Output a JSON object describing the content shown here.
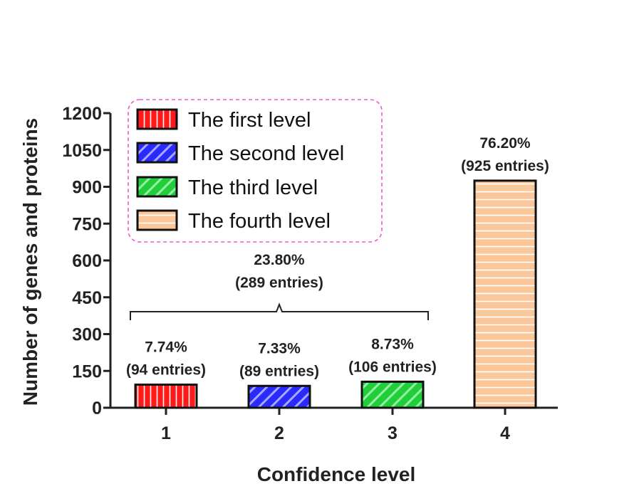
{
  "chart_data": {
    "type": "bar",
    "categories": [
      "1",
      "2",
      "3",
      "4"
    ],
    "values": [
      94,
      89,
      106,
      925
    ],
    "xlabel": "Confidence level",
    "ylabel": "Number of genes and proteins",
    "ylim": [
      0,
      1200
    ],
    "yticks": [
      0,
      150,
      300,
      450,
      600,
      750,
      900,
      1050,
      1200
    ],
    "grid": false,
    "series_legend": [
      {
        "name": "The first level",
        "color": "#ff1a1a",
        "pattern": "vertical-lines"
      },
      {
        "name": "The second level",
        "color": "#2a2aff",
        "pattern": "diagonal-lines"
      },
      {
        "name": "The third level",
        "color": "#22cc3a",
        "pattern": "diagonal-lines"
      },
      {
        "name": "The fourth level",
        "color": "#f9c79a",
        "pattern": "horizontal-lines"
      }
    ],
    "legend_position": "top-left",
    "data_labels": [
      {
        "percent": "7.74%",
        "entries": "(94 entries)"
      },
      {
        "percent": "7.33%",
        "entries": "(89 entries)"
      },
      {
        "percent": "8.73%",
        "entries": "(106 entries)"
      },
      {
        "percent": "76.20%",
        "entries": "(925 entries)"
      }
    ],
    "group_annotation": {
      "percent": "23.80%",
      "entries": "(289 entries)",
      "spans_categories": [
        "1",
        "2",
        "3"
      ]
    }
  }
}
